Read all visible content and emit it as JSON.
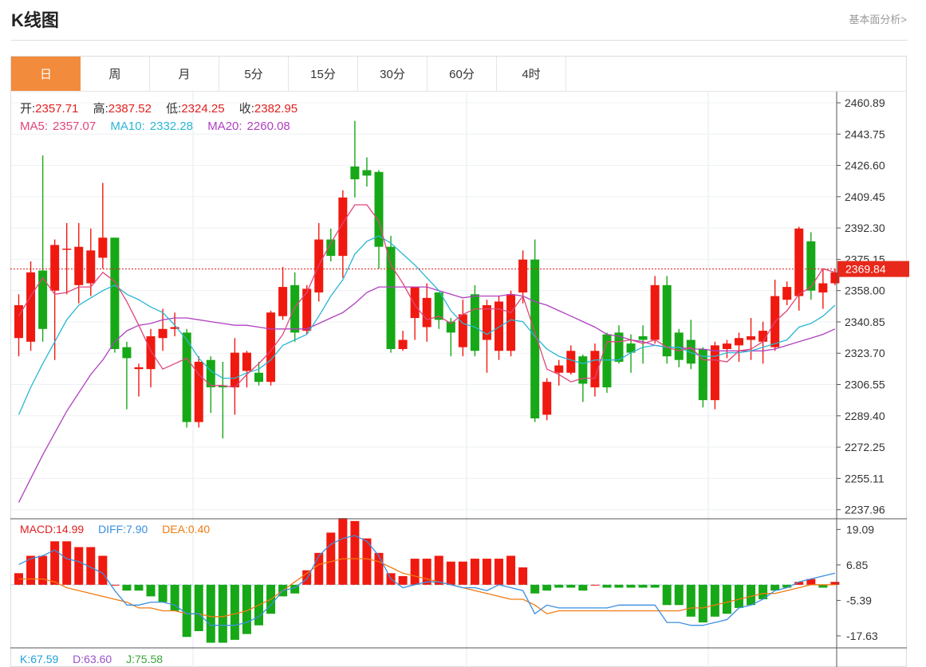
{
  "header": {
    "title": "K线图",
    "link": "基本面分析>"
  },
  "tabs": [
    "日",
    "周",
    "月",
    "5分",
    "15分",
    "30分",
    "60分",
    "4时"
  ],
  "active_tab": 0,
  "colors": {
    "up": "#f0190f",
    "down": "#17a817",
    "accent": "#f28b3c",
    "ma5": "#e0457b",
    "ma10": "#29b6d3",
    "ma20": "#b040c0",
    "macd_diff": "#3a8fe0",
    "macd_dea": "#f07a10",
    "k": "#1f9fd9",
    "d": "#9a52c8",
    "j": "#3aa63a"
  },
  "info": {
    "open_label": "开:",
    "open": "2357.71",
    "high_label": "高:",
    "high": "2387.52",
    "low_label": "低:",
    "low": "2324.25",
    "close_label": "收:",
    "close": "2382.95",
    "ma5_label": "MA5:",
    "ma5": "2357.07",
    "ma10_label": "MA10:",
    "ma10": "2332.28",
    "ma20_label": "MA20:",
    "ma20": "2260.08"
  },
  "macd_info": {
    "macd_label": "MACD:",
    "macd": "14.99",
    "diff_label": "DIFF:",
    "diff": "7.90",
    "dea_label": "DEA:",
    "dea": "0.40"
  },
  "kdj_info": {
    "k_label": "K:",
    "k": "67.59",
    "d_label": "D:",
    "d": "63.60",
    "j_label": "J:",
    "j": "75.58"
  },
  "chart_data": {
    "type": "candlestick",
    "price_axis": {
      "ticks": [
        "2460.89",
        "2443.75",
        "2426.60",
        "2409.45",
        "2392.30",
        "2375.15",
        "2358.00",
        "2340.85",
        "2323.70",
        "2306.55",
        "2289.40",
        "2272.25",
        "2255.11",
        "2237.96"
      ],
      "ylim": [
        2233,
        2467
      ]
    },
    "current_price": "2369.84",
    "candles": [
      {
        "o": 2332,
        "c": 2350,
        "h": 2356,
        "l": 2322
      },
      {
        "o": 2330,
        "c": 2368,
        "h": 2374,
        "l": 2325
      },
      {
        "o": 2369,
        "c": 2337,
        "h": 2432,
        "l": 2330
      },
      {
        "o": 2358,
        "c": 2383,
        "h": 2386,
        "l": 2320
      },
      {
        "o": 2381,
        "c": 2381,
        "h": 2395,
        "l": 2356
      },
      {
        "o": 2361,
        "c": 2382,
        "h": 2395,
        "l": 2351
      },
      {
        "o": 2362,
        "c": 2380,
        "h": 2392,
        "l": 2355
      },
      {
        "o": 2376,
        "c": 2387,
        "h": 2417,
        "l": 2370
      },
      {
        "o": 2387,
        "c": 2326,
        "h": 2387,
        "l": 2324
      },
      {
        "o": 2327,
        "c": 2321,
        "h": 2330,
        "l": 2293
      },
      {
        "o": 2315,
        "c": 2316,
        "h": 2318,
        "l": 2300
      },
      {
        "o": 2315,
        "c": 2333,
        "h": 2337,
        "l": 2305
      },
      {
        "o": 2332,
        "c": 2337,
        "h": 2348,
        "l": 2325
      },
      {
        "o": 2337,
        "c": 2338,
        "h": 2346,
        "l": 2333
      },
      {
        "o": 2335,
        "c": 2286,
        "h": 2337,
        "l": 2283
      },
      {
        "o": 2286,
        "c": 2319,
        "h": 2322,
        "l": 2283
      },
      {
        "o": 2320,
        "c": 2305,
        "h": 2322,
        "l": 2291
      },
      {
        "o": 2306,
        "c": 2305,
        "h": 2319,
        "l": 2277
      },
      {
        "o": 2305,
        "c": 2324,
        "h": 2332,
        "l": 2290
      },
      {
        "o": 2314,
        "c": 2324,
        "h": 2325,
        "l": 2305
      },
      {
        "o": 2313,
        "c": 2308,
        "h": 2319,
        "l": 2306
      },
      {
        "o": 2308,
        "c": 2346,
        "h": 2347,
        "l": 2306
      },
      {
        "o": 2344,
        "c": 2360,
        "h": 2371,
        "l": 2342
      },
      {
        "o": 2361,
        "c": 2335,
        "h": 2368,
        "l": 2330
      },
      {
        "o": 2336,
        "c": 2359,
        "h": 2361,
        "l": 2334
      },
      {
        "o": 2357,
        "c": 2386,
        "h": 2395,
        "l": 2352
      },
      {
        "o": 2386,
        "c": 2377,
        "h": 2392,
        "l": 2374
      },
      {
        "o": 2377,
        "c": 2409,
        "h": 2413,
        "l": 2365
      },
      {
        "o": 2426,
        "c": 2419,
        "h": 2451,
        "l": 2409
      },
      {
        "o": 2424,
        "c": 2421,
        "h": 2431,
        "l": 2415
      },
      {
        "o": 2423,
        "c": 2382,
        "h": 2424,
        "l": 2370
      },
      {
        "o": 2382,
        "c": 2326,
        "h": 2388,
        "l": 2324
      },
      {
        "o": 2326,
        "c": 2331,
        "h": 2336,
        "l": 2325
      },
      {
        "o": 2343,
        "c": 2360,
        "h": 2360,
        "l": 2331
      },
      {
        "o": 2338,
        "c": 2354,
        "h": 2362,
        "l": 2330
      },
      {
        "o": 2357,
        "c": 2342,
        "h": 2357,
        "l": 2337
      },
      {
        "o": 2341,
        "c": 2335,
        "h": 2343,
        "l": 2322
      },
      {
        "o": 2327,
        "c": 2345,
        "h": 2353,
        "l": 2322
      },
      {
        "o": 2356,
        "c": 2325,
        "h": 2361,
        "l": 2322
      },
      {
        "o": 2331,
        "c": 2350,
        "h": 2353,
        "l": 2313
      },
      {
        "o": 2325,
        "c": 2352,
        "h": 2355,
        "l": 2320
      },
      {
        "o": 2325,
        "c": 2356,
        "h": 2358,
        "l": 2322
      },
      {
        "o": 2357,
        "c": 2375,
        "h": 2380,
        "l": 2351
      },
      {
        "o": 2375,
        "c": 2288,
        "h": 2386,
        "l": 2286
      },
      {
        "o": 2290,
        "c": 2308,
        "h": 2310,
        "l": 2287
      },
      {
        "o": 2313,
        "c": 2317,
        "h": 2320,
        "l": 2306
      },
      {
        "o": 2313,
        "c": 2325,
        "h": 2328,
        "l": 2312
      },
      {
        "o": 2322,
        "c": 2307,
        "h": 2323,
        "l": 2297
      },
      {
        "o": 2305,
        "c": 2325,
        "h": 2329,
        "l": 2300
      },
      {
        "o": 2334,
        "c": 2305,
        "h": 2335,
        "l": 2302
      },
      {
        "o": 2335,
        "c": 2319,
        "h": 2339,
        "l": 2318
      },
      {
        "o": 2329,
        "c": 2324,
        "h": 2334,
        "l": 2313
      },
      {
        "o": 2333,
        "c": 2331,
        "h": 2339,
        "l": 2318
      },
      {
        "o": 2331,
        "c": 2361,
        "h": 2366,
        "l": 2329
      },
      {
        "o": 2361,
        "c": 2322,
        "h": 2366,
        "l": 2318
      },
      {
        "o": 2335,
        "c": 2320,
        "h": 2337,
        "l": 2316
      },
      {
        "o": 2331,
        "c": 2318,
        "h": 2342,
        "l": 2315
      },
      {
        "o": 2326,
        "c": 2298,
        "h": 2327,
        "l": 2294
      },
      {
        "o": 2298,
        "c": 2328,
        "h": 2330,
        "l": 2293
      },
      {
        "o": 2326,
        "c": 2329,
        "h": 2331,
        "l": 2321
      },
      {
        "o": 2328,
        "c": 2332,
        "h": 2335,
        "l": 2319
      },
      {
        "o": 2331,
        "c": 2333,
        "h": 2343,
        "l": 2320
      },
      {
        "o": 2330,
        "c": 2336,
        "h": 2341,
        "l": 2318
      },
      {
        "o": 2327,
        "c": 2355,
        "h": 2364,
        "l": 2325
      },
      {
        "o": 2353,
        "c": 2360,
        "h": 2363,
        "l": 2350
      },
      {
        "o": 2355,
        "c": 2392,
        "h": 2393,
        "l": 2347
      },
      {
        "o": 2385,
        "c": 2358,
        "h": 2390,
        "l": 2353
      },
      {
        "o": 2357,
        "c": 2362,
        "h": 2370,
        "l": 2348
      },
      {
        "o": 2362,
        "c": 2368,
        "h": 2370,
        "l": 2361
      }
    ],
    "ma5": [
      2344,
      2355,
      2365,
      2356,
      2357,
      2360,
      2360,
      2368,
      2363,
      2352,
      2339,
      2325,
      2315,
      2318,
      2321,
      2312,
      2306,
      2306,
      2305,
      2312,
      2318,
      2325,
      2334,
      2349,
      2357,
      2372,
      2384,
      2395,
      2405,
      2405,
      2396,
      2372,
      2362,
      2350,
      2342,
      2344,
      2340,
      2345,
      2348,
      2348,
      2348,
      2346,
      2355,
      2335,
      2315,
      2312,
      2308,
      2310,
      2310,
      2330,
      2330,
      2331,
      2329,
      2331,
      2327,
      2325,
      2327,
      2320,
      2320,
      2319,
      2325,
      2326,
      2330,
      2341,
      2347,
      2356,
      2360,
      2370,
      2368
    ],
    "ma10": [
      2290,
      2305,
      2318,
      2330,
      2342,
      2350,
      2354,
      2358,
      2361,
      2356,
      2353,
      2349,
      2346,
      2339,
      2331,
      2321,
      2314,
      2310,
      2310,
      2313,
      2315,
      2320,
      2328,
      2331,
      2334,
      2344,
      2355,
      2364,
      2378,
      2385,
      2388,
      2384,
      2378,
      2372,
      2365,
      2358,
      2347,
      2340,
      2338,
      2334,
      2338,
      2342,
      2341,
      2333,
      2326,
      2322,
      2320,
      2318,
      2320,
      2320,
      2320,
      2324,
      2327,
      2328,
      2327,
      2327,
      2324,
      2322,
      2322,
      2324,
      2324,
      2325,
      2327,
      2329,
      2331,
      2338,
      2340,
      2344,
      2350
    ],
    "ma20": [
      2242,
      2255,
      2268,
      2280,
      2292,
      2302,
      2312,
      2320,
      2330,
      2336,
      2339,
      2340,
      2342,
      2343,
      2343,
      2342,
      2341,
      2340,
      2339,
      2339,
      2338,
      2337,
      2337,
      2337,
      2337,
      2340,
      2343,
      2346,
      2351,
      2357,
      2360,
      2360,
      2360,
      2360,
      2360,
      2358,
      2356,
      2354,
      2355,
      2355,
      2355,
      2356,
      2355,
      2352,
      2350,
      2347,
      2344,
      2341,
      2338,
      2334,
      2333,
      2331,
      2330,
      2328,
      2327,
      2327,
      2326,
      2326,
      2325,
      2325,
      2325,
      2325,
      2325,
      2326,
      2328,
      2330,
      2332,
      2334,
      2337
    ],
    "macd": {
      "ticks": [
        "19.09",
        "6.85",
        "-5.39",
        "-17.63"
      ],
      "ylim": [
        -21.5,
        22.5
      ],
      "hist": [
        4,
        10,
        10,
        15,
        15,
        13,
        13,
        10,
        0,
        -2,
        -2,
        -4,
        -6,
        -9,
        -18,
        -16,
        -20,
        -20,
        -19,
        -17,
        -14,
        -10,
        -4,
        -3,
        5,
        11,
        18,
        23,
        22,
        16,
        11,
        4,
        3,
        9,
        9,
        10,
        8,
        8,
        9,
        9,
        9,
        10,
        6,
        -3,
        -2,
        -1,
        -1,
        -2,
        0,
        -1,
        -1,
        -1,
        -1,
        -1,
        -7,
        -7,
        -11,
        -13,
        -11,
        -10,
        -8,
        -7,
        -5,
        -2,
        -1,
        1,
        2,
        -1,
        1
      ],
      "diff": [
        7,
        9,
        10,
        12,
        9,
        8,
        6,
        4,
        -2,
        -7,
        -7,
        -6,
        -6,
        -7,
        -10,
        -10,
        -14,
        -14,
        -14,
        -13,
        -11,
        -7,
        -2,
        -1,
        2,
        10,
        14,
        16,
        17,
        15,
        10,
        2,
        -1,
        0,
        1,
        1,
        0,
        -1,
        -1,
        -2,
        0,
        -1,
        -2,
        -10,
        -7,
        -8,
        -8,
        -8,
        -8,
        -8,
        -7,
        -7,
        -7,
        -7,
        -13,
        -13,
        -14,
        -14,
        -13,
        -12,
        -8,
        -7,
        -5,
        -2,
        -1,
        1,
        2,
        3,
        4
      ],
      "dea": [
        2,
        2,
        2,
        1,
        -1,
        -2,
        -3,
        -4,
        -5,
        -6,
        -8,
        -8,
        -9,
        -9,
        -10,
        -10,
        -11,
        -11,
        -10,
        -9,
        -7,
        -5,
        -2,
        1,
        4,
        7,
        8,
        9,
        9,
        9,
        8,
        6,
        4,
        3,
        2,
        1,
        0,
        -1,
        -2,
        -3,
        -4,
        -5,
        -5,
        -7,
        -10,
        -9,
        -9,
        -9,
        -9,
        -9,
        -9,
        -9,
        -9,
        -9,
        -9,
        -9,
        -8,
        -8,
        -7,
        -6,
        -5,
        -4,
        -3,
        -3,
        -2,
        -1,
        0,
        0,
        0
      ]
    }
  }
}
